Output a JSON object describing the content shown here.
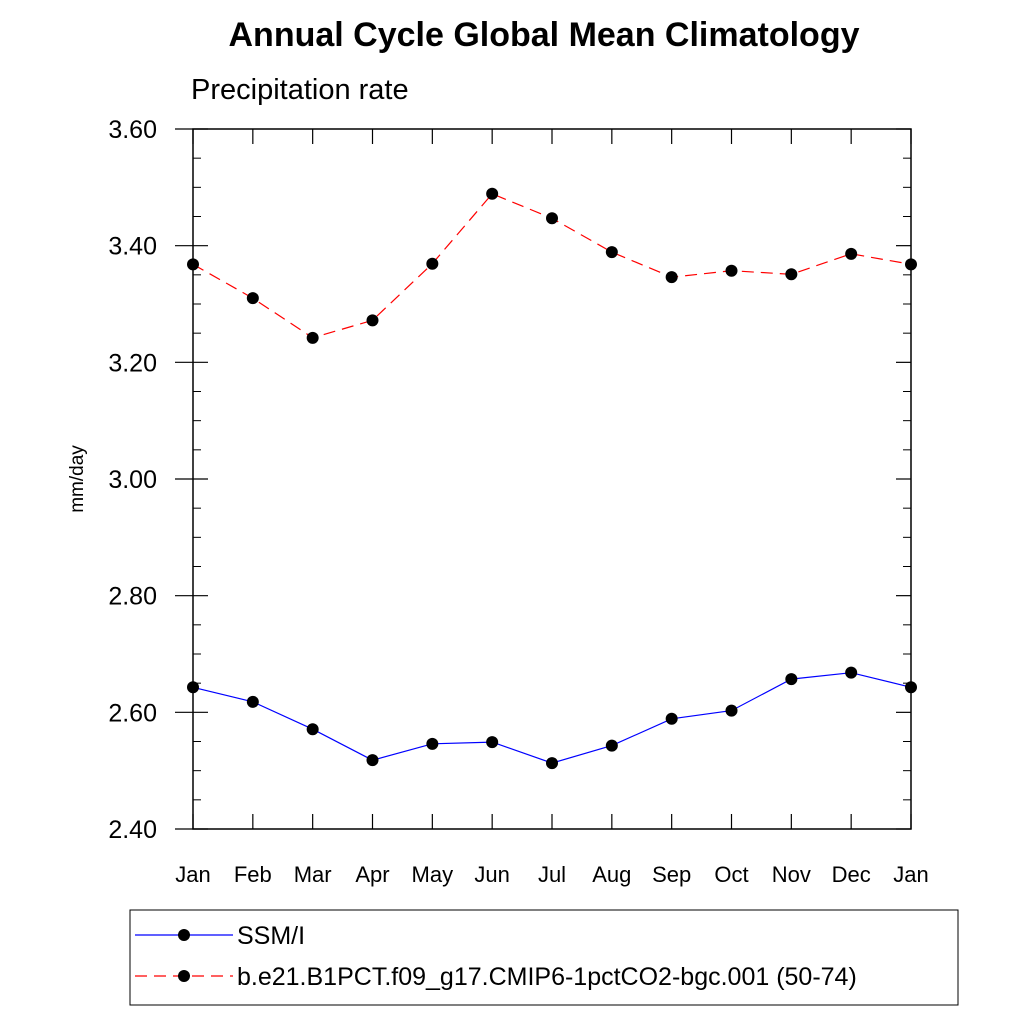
{
  "chart_data": {
    "type": "line",
    "title": "Annual Cycle Global Mean Climatology",
    "subtitle": "Precipitation rate",
    "xlabel": "",
    "ylabel": "mm/day",
    "categories": [
      "Jan",
      "Feb",
      "Mar",
      "Apr",
      "May",
      "Jun",
      "Jul",
      "Aug",
      "Sep",
      "Oct",
      "Nov",
      "Dec",
      "Jan"
    ],
    "ylim": [
      2.4,
      3.6
    ],
    "yticks": [
      2.4,
      2.6,
      2.8,
      3.0,
      3.2,
      3.4,
      3.6
    ],
    "ytick_labels": [
      "2.40",
      "2.60",
      "2.80",
      "3.00",
      "3.20",
      "3.40",
      "3.60"
    ],
    "legend_position": "bottom",
    "series": [
      {
        "name": "SSM/I",
        "color": "#0000ff",
        "line_style": "solid",
        "marker": "filled-circle",
        "values": [
          2.643,
          2.618,
          2.571,
          2.518,
          2.546,
          2.549,
          2.513,
          2.543,
          2.589,
          2.603,
          2.657,
          2.668,
          2.643
        ]
      },
      {
        "name": "b.e21.B1PCT.f09_g17.CMIP6-1pctCO2-bgc.001 (50-74)",
        "color": "#ff0000",
        "line_style": "dashed",
        "marker": "filled-circle",
        "values": [
          3.368,
          3.31,
          3.242,
          3.272,
          3.369,
          3.489,
          3.447,
          3.389,
          3.346,
          3.357,
          3.351,
          3.386,
          3.368
        ]
      }
    ]
  }
}
